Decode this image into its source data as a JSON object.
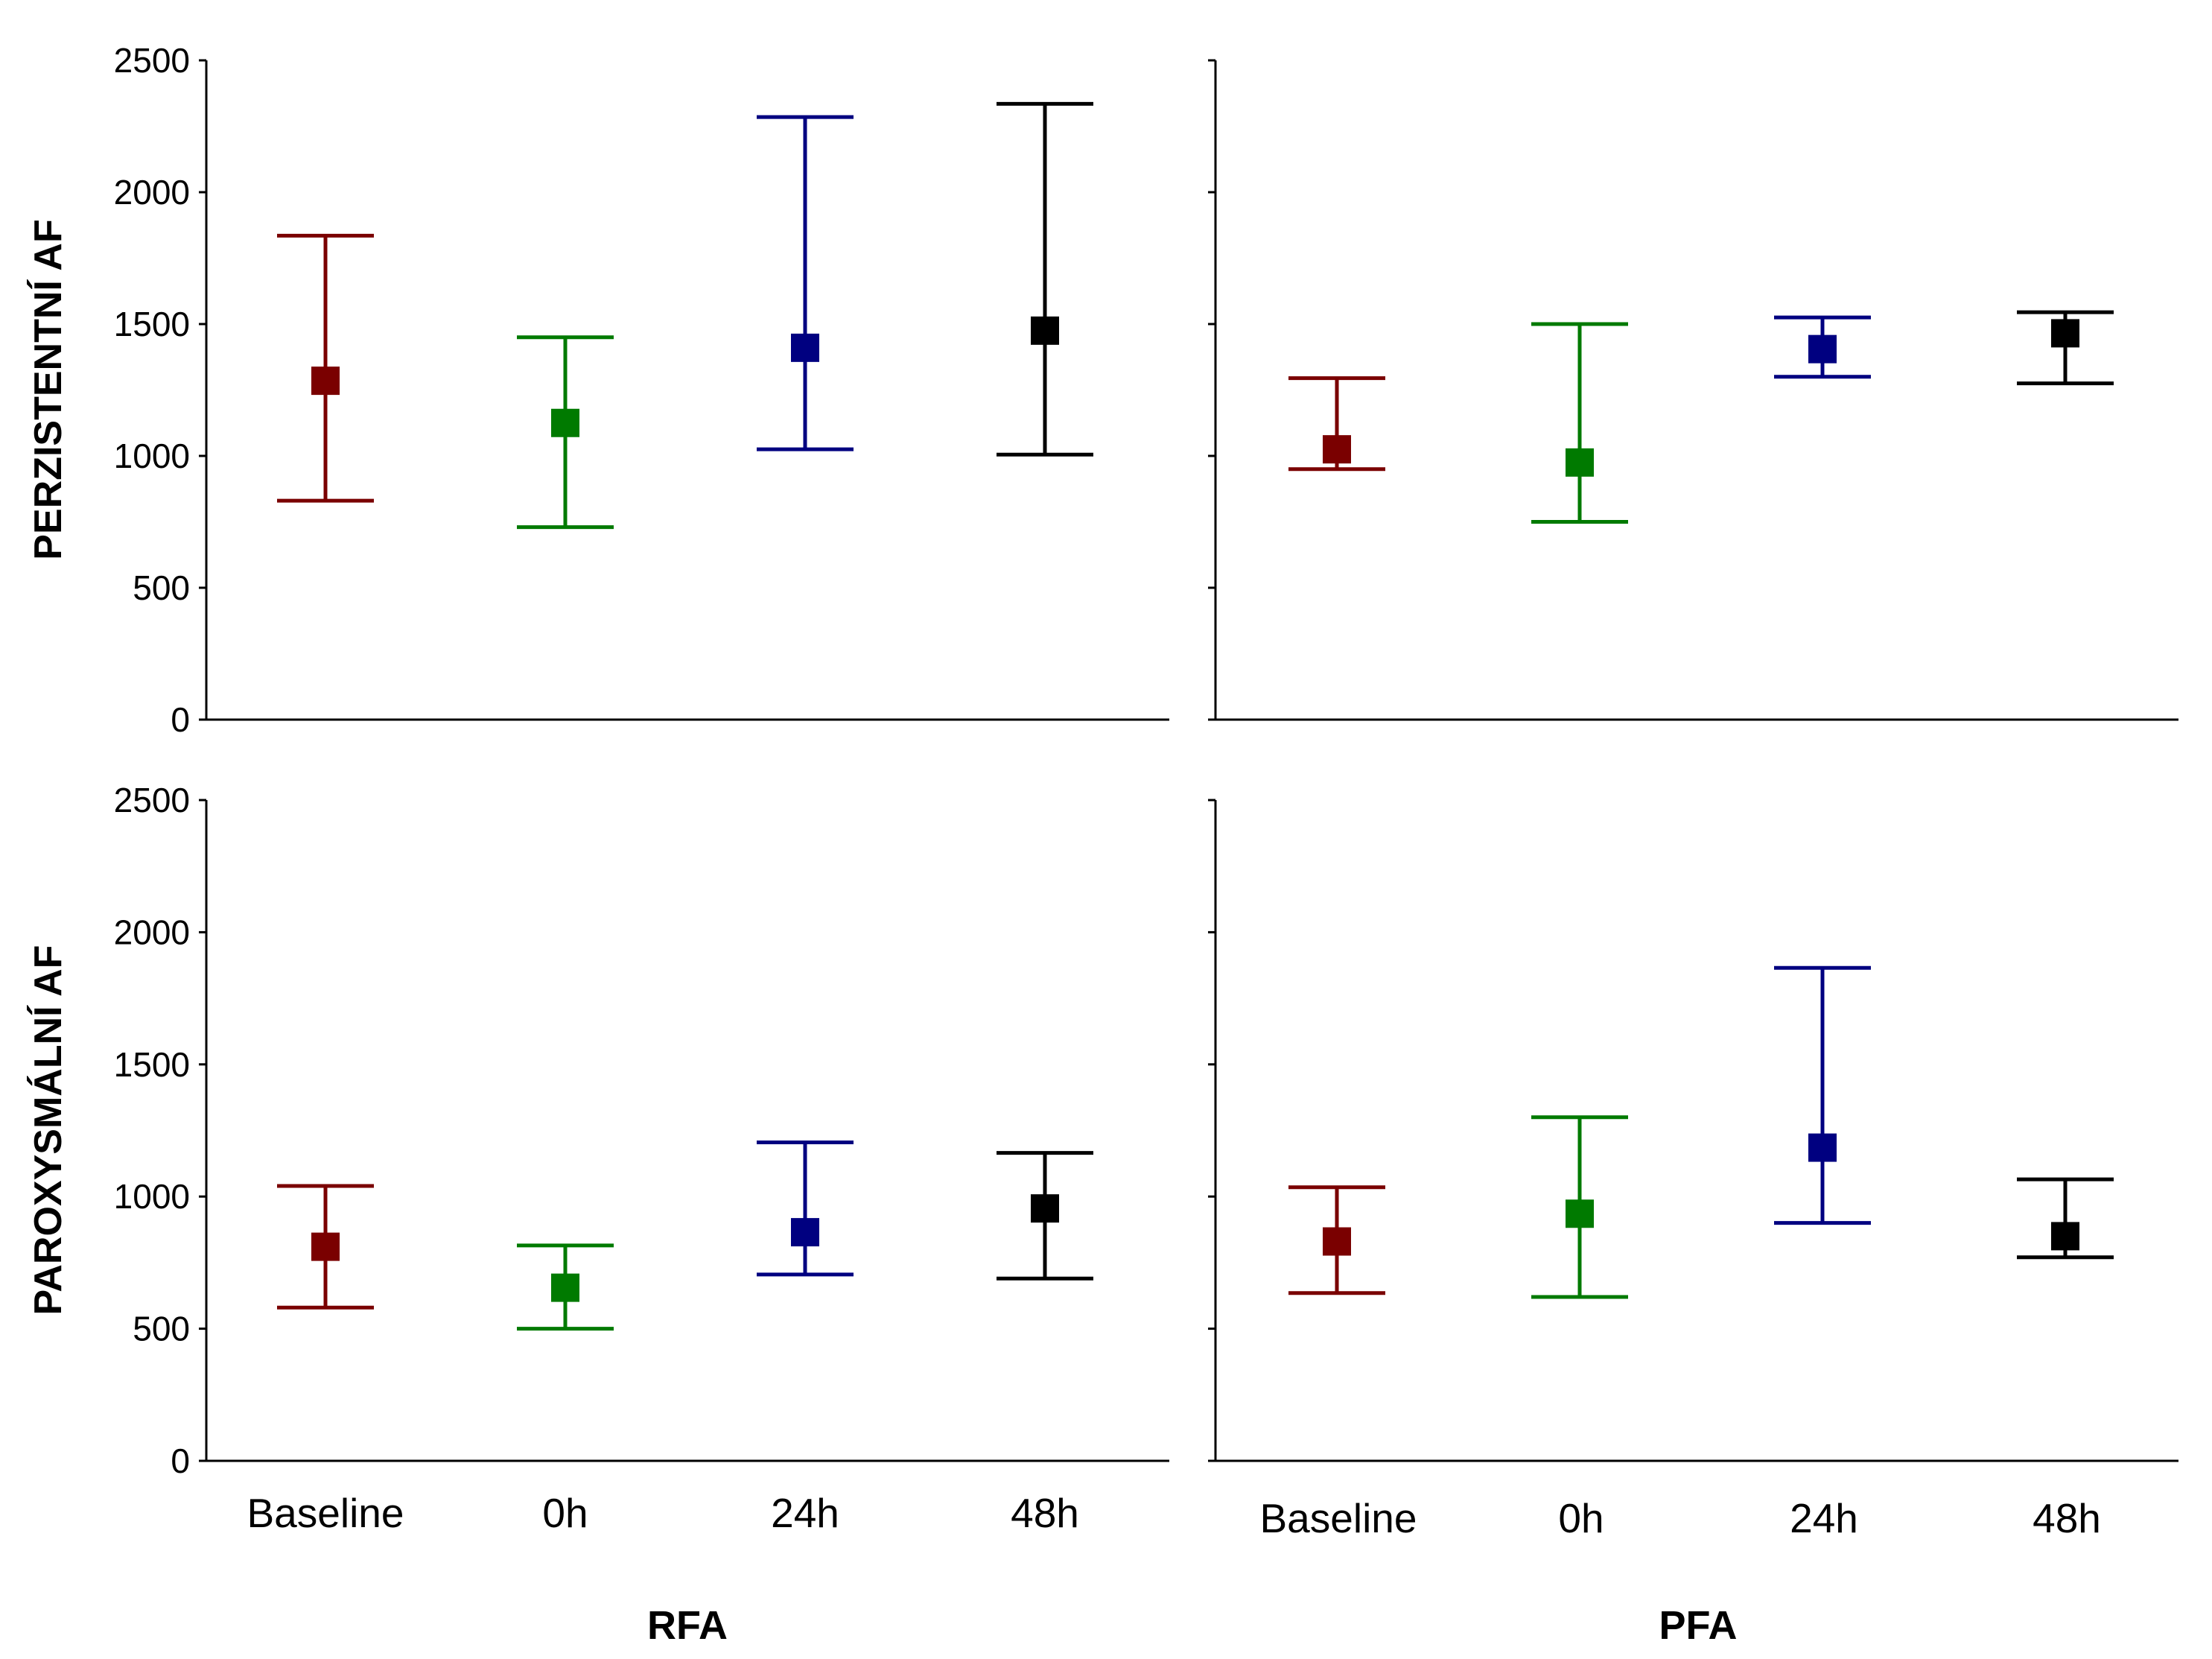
{
  "chart_data": {
    "type": "scatter",
    "description_units": "mean with error bars",
    "categories": [
      "Baseline",
      "0h",
      "24h",
      "48h"
    ],
    "colors": [
      "#7a0000",
      "#007a00",
      "#000080",
      "#000000"
    ],
    "ylim": [
      0,
      2500
    ],
    "yticks": [
      0,
      500,
      1000,
      1500,
      2000,
      2500
    ],
    "row_labels": [
      "PERZISTENTNÍ AF",
      "PAROXYSMÁLNÍ AF"
    ],
    "column_labels": [
      "RFA",
      "PFA"
    ],
    "panels": [
      {
        "row": "PERZISTENTNÍ AF",
        "column": "RFA",
        "points": [
          {
            "category": "Baseline",
            "value": 1285,
            "low": 830,
            "high": 1835
          },
          {
            "category": "0h",
            "value": 1125,
            "low": 730,
            "high": 1450
          },
          {
            "category": "24h",
            "value": 1410,
            "low": 1025,
            "high": 2285
          },
          {
            "category": "48h",
            "value": 1475,
            "low": 1005,
            "high": 2335
          }
        ]
      },
      {
        "row": "PERZISTENTNÍ AF",
        "column": "PFA",
        "points": [
          {
            "category": "Baseline",
            "value": 1025,
            "low": 950,
            "high": 1295
          },
          {
            "category": "0h",
            "value": 975,
            "low": 750,
            "high": 1500
          },
          {
            "category": "24h",
            "value": 1405,
            "low": 1300,
            "high": 1525
          },
          {
            "category": "48h",
            "value": 1465,
            "low": 1275,
            "high": 1545
          }
        ]
      },
      {
        "row": "PAROXYSMÁLNÍ AF",
        "column": "RFA",
        "points": [
          {
            "category": "Baseline",
            "value": 810,
            "low": 580,
            "high": 1040
          },
          {
            "category": "0h",
            "value": 655,
            "low": 500,
            "high": 815
          },
          {
            "category": "24h",
            "value": 865,
            "low": 705,
            "high": 1205
          },
          {
            "category": "48h",
            "value": 955,
            "low": 690,
            "high": 1165
          }
        ]
      },
      {
        "row": "PAROXYSMÁLNÍ AF",
        "column": "PFA",
        "points": [
          {
            "category": "Baseline",
            "value": 830,
            "low": 635,
            "high": 1035
          },
          {
            "category": "0h",
            "value": 935,
            "low": 620,
            "high": 1300
          },
          {
            "category": "24h",
            "value": 1185,
            "low": 900,
            "high": 1865
          },
          {
            "category": "48h",
            "value": 850,
            "low": 770,
            "high": 1065
          }
        ]
      }
    ]
  }
}
